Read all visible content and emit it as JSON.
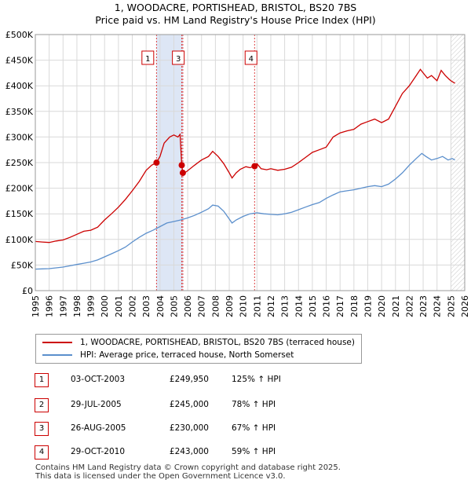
{
  "title": {
    "line1": "1, WOODACRE, PORTISHEAD, BRISTOL, BS20 7BS",
    "line2": "Price paid vs. HM Land Registry's House Price Index (HPI)"
  },
  "colors": {
    "property": "#cc0000",
    "hpi": "#5b8fcc",
    "shade": "#dde6f5",
    "grid": "#d9d9d9"
  },
  "chart_data": {
    "type": "line",
    "title": "Price paid vs. HM Land Registry's House Price Index (HPI)",
    "xlim": [
      1995,
      2026
    ],
    "ylim": [
      0,
      500000
    ],
    "ytick_values": [
      0,
      50000,
      100000,
      150000,
      200000,
      250000,
      300000,
      350000,
      400000,
      450000,
      500000
    ],
    "ytick_labels": [
      "£0",
      "£50K",
      "£100K",
      "£150K",
      "£200K",
      "£250K",
      "£300K",
      "£350K",
      "£400K",
      "£450K",
      "£500K"
    ],
    "xtick_values": [
      1995,
      1996,
      1997,
      1998,
      1999,
      2000,
      2001,
      2002,
      2003,
      2004,
      2005,
      2006,
      2007,
      2008,
      2009,
      2010,
      2011,
      2012,
      2013,
      2014,
      2015,
      2016,
      2017,
      2018,
      2019,
      2020,
      2021,
      2022,
      2023,
      2024,
      2025,
      2026
    ],
    "xtick_labels": [
      "1995",
      "1996",
      "1997",
      "1998",
      "1999",
      "2000",
      "2001",
      "2002",
      "2003",
      "2004",
      "2005",
      "2006",
      "2007",
      "2008",
      "2009",
      "2010",
      "2011",
      "2012",
      "2013",
      "2014",
      "2015",
      "2016",
      "2017",
      "2018",
      "2019",
      "2020",
      "2021",
      "2022",
      "2023",
      "2024",
      "2025",
      "2026"
    ],
    "shaded_ranges": [
      [
        2003.75,
        2005.65
      ]
    ],
    "future_from": 2025.0,
    "series": [
      {
        "name": "1, WOODACRE, PORTISHEAD, BRISTOL, BS20 7BS (terraced house)",
        "color": "#cc0000",
        "points": [
          [
            1995.0,
            96000
          ],
          [
            1995.5,
            95000
          ],
          [
            1996.0,
            94000
          ],
          [
            1996.5,
            97000
          ],
          [
            1997.0,
            99000
          ],
          [
            1997.5,
            104000
          ],
          [
            1998.0,
            110000
          ],
          [
            1998.5,
            116000
          ],
          [
            1999.0,
            118000
          ],
          [
            1999.5,
            124000
          ],
          [
            2000.0,
            138000
          ],
          [
            2000.5,
            150000
          ],
          [
            2001.0,
            163000
          ],
          [
            2001.5,
            178000
          ],
          [
            2002.0,
            195000
          ],
          [
            2002.5,
            213000
          ],
          [
            2003.0,
            235000
          ],
          [
            2003.4,
            245000
          ],
          [
            2003.75,
            249950
          ],
          [
            2004.0,
            262000
          ],
          [
            2004.3,
            288000
          ],
          [
            2004.7,
            300000
          ],
          [
            2005.0,
            304000
          ],
          [
            2005.3,
            300000
          ],
          [
            2005.45,
            305000
          ],
          [
            2005.57,
            245000
          ],
          [
            2005.65,
            230000
          ],
          [
            2005.9,
            232000
          ],
          [
            2006.5,
            245000
          ],
          [
            2007.0,
            255000
          ],
          [
            2007.5,
            262000
          ],
          [
            2007.8,
            272000
          ],
          [
            2008.2,
            262000
          ],
          [
            2008.6,
            248000
          ],
          [
            2009.0,
            230000
          ],
          [
            2009.2,
            220000
          ],
          [
            2009.5,
            230000
          ],
          [
            2009.8,
            237000
          ],
          [
            2010.2,
            242000
          ],
          [
            2010.5,
            240000
          ],
          [
            2010.83,
            243000
          ],
          [
            2011.0,
            248000
          ],
          [
            2011.3,
            238000
          ],
          [
            2011.7,
            236000
          ],
          [
            2012.0,
            238000
          ],
          [
            2012.5,
            235000
          ],
          [
            2013.0,
            237000
          ],
          [
            2013.5,
            241000
          ],
          [
            2014.0,
            250000
          ],
          [
            2014.5,
            260000
          ],
          [
            2015.0,
            270000
          ],
          [
            2015.5,
            275000
          ],
          [
            2016.0,
            280000
          ],
          [
            2016.5,
            300000
          ],
          [
            2017.0,
            308000
          ],
          [
            2017.5,
            312000
          ],
          [
            2018.0,
            315000
          ],
          [
            2018.5,
            325000
          ],
          [
            2019.0,
            330000
          ],
          [
            2019.5,
            335000
          ],
          [
            2020.0,
            328000
          ],
          [
            2020.5,
            335000
          ],
          [
            2021.0,
            360000
          ],
          [
            2021.5,
            385000
          ],
          [
            2022.0,
            400000
          ],
          [
            2022.5,
            420000
          ],
          [
            2022.8,
            432000
          ],
          [
            2023.0,
            425000
          ],
          [
            2023.3,
            415000
          ],
          [
            2023.6,
            420000
          ],
          [
            2024.0,
            410000
          ],
          [
            2024.3,
            430000
          ],
          [
            2024.6,
            420000
          ],
          [
            2024.9,
            412000
          ],
          [
            2025.1,
            408000
          ],
          [
            2025.3,
            405000
          ]
        ]
      },
      {
        "name": "HPI: Average price, terraced house, North Somerset",
        "color": "#5b8fcc",
        "points": [
          [
            1995.0,
            42000
          ],
          [
            1995.5,
            42500
          ],
          [
            1996.0,
            43000
          ],
          [
            1996.5,
            44500
          ],
          [
            1997.0,
            46000
          ],
          [
            1997.5,
            48500
          ],
          [
            1998.0,
            51000
          ],
          [
            1998.5,
            53500
          ],
          [
            1999.0,
            56000
          ],
          [
            1999.5,
            60000
          ],
          [
            2000.0,
            66000
          ],
          [
            2000.5,
            72000
          ],
          [
            2001.0,
            78000
          ],
          [
            2001.5,
            85000
          ],
          [
            2002.0,
            95000
          ],
          [
            2002.5,
            104000
          ],
          [
            2003.0,
            112000
          ],
          [
            2003.5,
            118000
          ],
          [
            2004.0,
            125000
          ],
          [
            2004.5,
            132000
          ],
          [
            2005.0,
            135000
          ],
          [
            2005.5,
            138000
          ],
          [
            2006.0,
            142000
          ],
          [
            2006.5,
            147000
          ],
          [
            2007.0,
            153000
          ],
          [
            2007.5,
            160000
          ],
          [
            2007.8,
            167000
          ],
          [
            2008.2,
            165000
          ],
          [
            2008.6,
            155000
          ],
          [
            2009.0,
            140000
          ],
          [
            2009.2,
            132000
          ],
          [
            2009.5,
            138000
          ],
          [
            2010.0,
            145000
          ],
          [
            2010.5,
            150000
          ],
          [
            2011.0,
            152000
          ],
          [
            2011.5,
            150000
          ],
          [
            2012.0,
            149000
          ],
          [
            2012.5,
            148000
          ],
          [
            2013.0,
            150000
          ],
          [
            2013.5,
            153000
          ],
          [
            2014.0,
            158000
          ],
          [
            2014.5,
            163000
          ],
          [
            2015.0,
            168000
          ],
          [
            2015.5,
            172000
          ],
          [
            2016.0,
            180000
          ],
          [
            2016.5,
            187000
          ],
          [
            2017.0,
            193000
          ],
          [
            2017.5,
            195000
          ],
          [
            2018.0,
            197000
          ],
          [
            2018.5,
            200000
          ],
          [
            2019.0,
            203000
          ],
          [
            2019.5,
            205000
          ],
          [
            2020.0,
            203000
          ],
          [
            2020.5,
            208000
          ],
          [
            2021.0,
            218000
          ],
          [
            2021.5,
            230000
          ],
          [
            2022.0,
            245000
          ],
          [
            2022.5,
            258000
          ],
          [
            2022.9,
            268000
          ],
          [
            2023.2,
            262000
          ],
          [
            2023.6,
            255000
          ],
          [
            2024.0,
            258000
          ],
          [
            2024.4,
            262000
          ],
          [
            2024.8,
            255000
          ],
          [
            2025.1,
            258000
          ],
          [
            2025.3,
            255000
          ]
        ]
      }
    ],
    "markers": [
      {
        "label": "1",
        "x": 2003.75,
        "y": 249950
      },
      {
        "label": "2",
        "x": 2005.57,
        "y": 245000
      },
      {
        "label": "3",
        "x": 2005.65,
        "y": 230000
      },
      {
        "label": "4",
        "x": 2010.83,
        "y": 243000
      }
    ],
    "marker_boxes": [
      {
        "label": "1",
        "x": 2003.15
      },
      {
        "label": "3",
        "x": 2005.35
      },
      {
        "label": "4",
        "x": 2010.6
      }
    ],
    "marker_line_y": 500000
  },
  "legend": {
    "property_label": "1, WOODACRE, PORTISHEAD, BRISTOL, BS20 7BS (terraced house)",
    "hpi_label": "HPI: Average price, terraced house, North Somerset"
  },
  "sales": [
    {
      "num": "1",
      "date": "03-OCT-2003",
      "price": "£249,950",
      "hpi": "125% ↑ HPI"
    },
    {
      "num": "2",
      "date": "29-JUL-2005",
      "price": "£245,000",
      "hpi": "78% ↑ HPI"
    },
    {
      "num": "3",
      "date": "26-AUG-2005",
      "price": "£230,000",
      "hpi": "67% ↑ HPI"
    },
    {
      "num": "4",
      "date": "29-OCT-2010",
      "price": "£243,000",
      "hpi": "59% ↑ HPI"
    }
  ],
  "footer": {
    "line1": "Contains HM Land Registry data © Crown copyright and database right 2025.",
    "line2": "This data is licensed under the Open Government Licence v3.0."
  }
}
